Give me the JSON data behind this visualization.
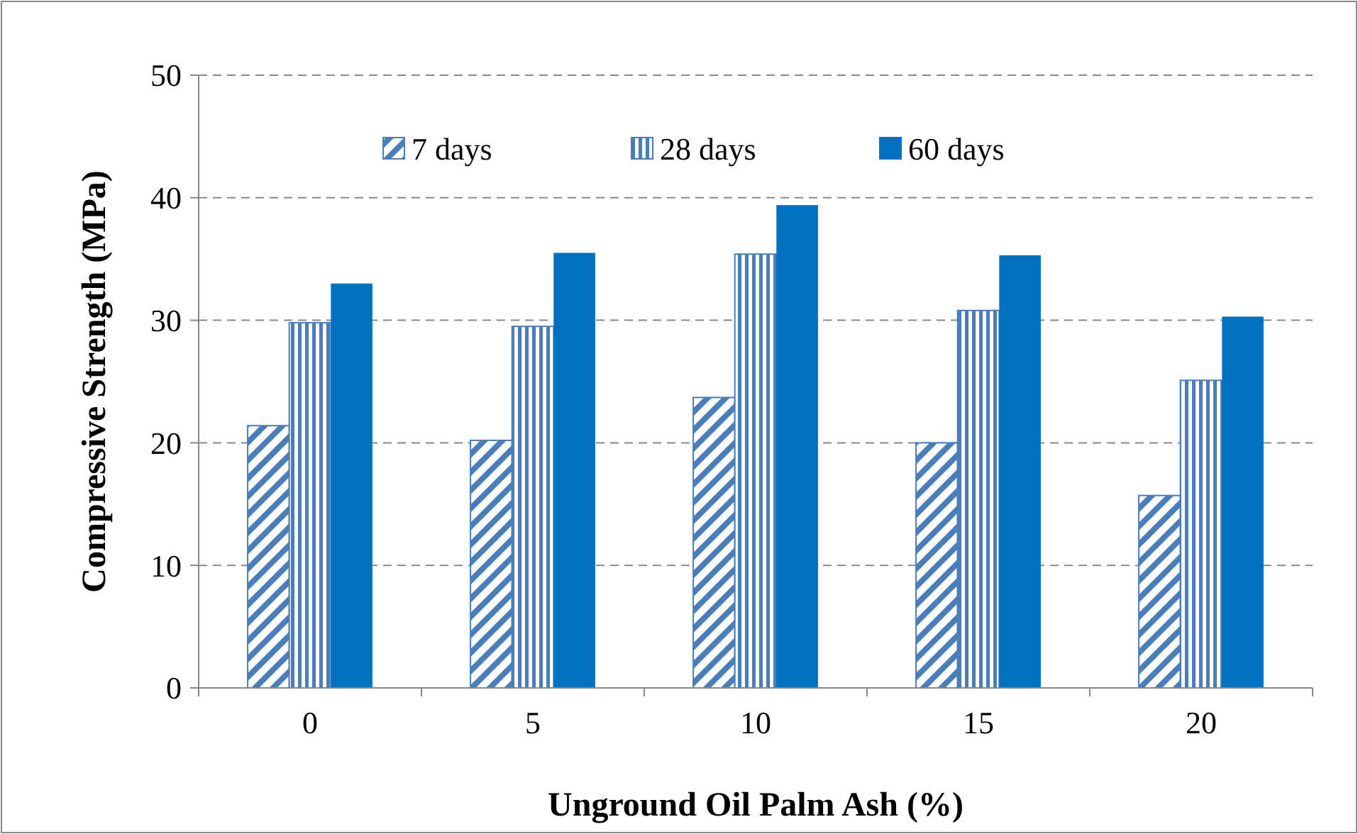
{
  "chart_data": {
    "type": "bar",
    "xlabel": "Unground Oil Palm Ash (%)",
    "ylabel": "Compressive Strength (MPa)",
    "categories": [
      "0",
      "5",
      "10",
      "15",
      "20"
    ],
    "series": [
      {
        "name": "7 days",
        "color": "#4a7ebb",
        "values": [
          21.4,
          20.2,
          23.7,
          20.0,
          15.7
        ]
      },
      {
        "name": "28 days",
        "color": "#4a7ebb",
        "values": [
          29.8,
          29.5,
          35.4,
          30.8,
          25.1
        ]
      },
      {
        "name": "60 days",
        "color": "#0070c0",
        "values": [
          33.0,
          35.5,
          39.4,
          35.3,
          30.3
        ]
      }
    ],
    "ylim": [
      0,
      50
    ],
    "yticks": [
      0,
      10,
      20,
      30,
      40,
      50
    ],
    "grid": "y",
    "legend": "top"
  }
}
